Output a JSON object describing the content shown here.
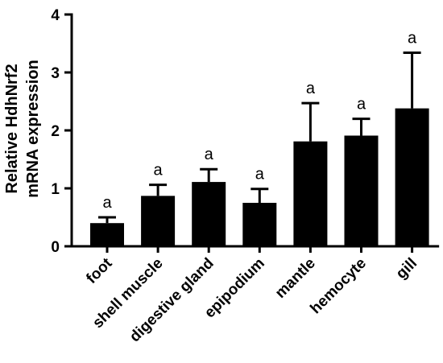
{
  "chart_data": {
    "type": "bar",
    "title": "",
    "xlabel": "",
    "ylabel_lines": [
      "Relative HdhNrf2",
      "mRNA expression"
    ],
    "categories": [
      "foot",
      "shell muscle",
      "digestive gland",
      "epipodium",
      "mantle",
      "hemocyte",
      "gill"
    ],
    "values": [
      0.4,
      0.87,
      1.11,
      0.75,
      1.81,
      1.91,
      2.38
    ],
    "errors": [
      0.1,
      0.19,
      0.22,
      0.24,
      0.66,
      0.29,
      0.96
    ],
    "significance": [
      "a",
      "a",
      "a",
      "a",
      "a",
      "a",
      "a"
    ],
    "ylim": [
      0,
      4
    ],
    "yticks": [
      "0",
      "1",
      "2",
      "3",
      "4"
    ],
    "bar_color": "#000000",
    "grid": false,
    "legend": "none"
  }
}
